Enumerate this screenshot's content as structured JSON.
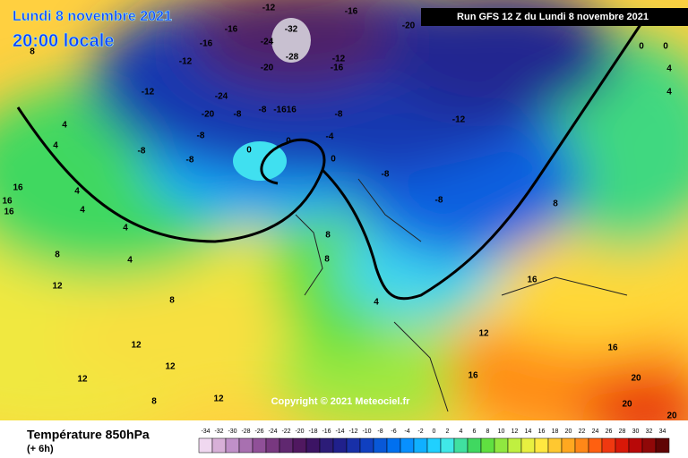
{
  "header": {
    "title": "Lundi 8 novembre 2021",
    "time": "20:00 locale",
    "run": "Run GFS 12 Z du Lundi 8 novembre 2021"
  },
  "copyright": "Copyright © 2021 Meteociel.fr",
  "footer": {
    "title": "Température 850hPa",
    "step": "(+ 6h)"
  },
  "scale": {
    "ticks": [
      -34,
      -32,
      -30,
      -28,
      -26,
      -24,
      -22,
      -20,
      -18,
      -16,
      -14,
      -12,
      -10,
      -8,
      -6,
      -4,
      -2,
      0,
      2,
      4,
      6,
      8,
      10,
      12,
      14,
      16,
      18,
      20,
      22,
      24,
      26,
      28,
      30,
      32,
      34
    ],
    "colors": [
      "#f0d8f0",
      "#d8b0d8",
      "#c090c8",
      "#a870b0",
      "#905098",
      "#783880",
      "#602870",
      "#501860",
      "#3c1464",
      "#2c1c78",
      "#20208c",
      "#1830a8",
      "#1040c0",
      "#0858d8",
      "#0070f0",
      "#0890ff",
      "#10b0ff",
      "#20d0ff",
      "#40e8e8",
      "#40e0a0",
      "#40d860",
      "#60e040",
      "#90e840",
      "#c0f040",
      "#e8f040",
      "#ffe840",
      "#ffc830",
      "#ffa820",
      "#ff8818",
      "#ff6010",
      "#f03810",
      "#d81808",
      "#b80808",
      "#900808",
      "#600404"
    ]
  },
  "contour_labels": [
    "-12",
    "-16",
    "-20",
    "-32",
    "-24",
    "-28",
    "-16",
    "-16",
    "-12",
    "-20",
    "-12",
    "-16",
    "-12",
    "-24",
    "-20",
    "-8",
    "-8",
    "-1616",
    "-8",
    "-12",
    "-8",
    "-8",
    "-8",
    "0",
    "0",
    "-4",
    "0",
    "-8",
    "-8",
    "4",
    "4",
    "16",
    "16",
    "16",
    "4",
    "4",
    "8",
    "12",
    "8",
    "12",
    "12",
    "12",
    "8",
    "8",
    "4",
    "12",
    "16",
    "16",
    "8",
    "20",
    "20",
    "20",
    "0",
    "0",
    "4",
    "4",
    "4",
    "4",
    "8",
    "16",
    "12",
    "8"
  ]
}
